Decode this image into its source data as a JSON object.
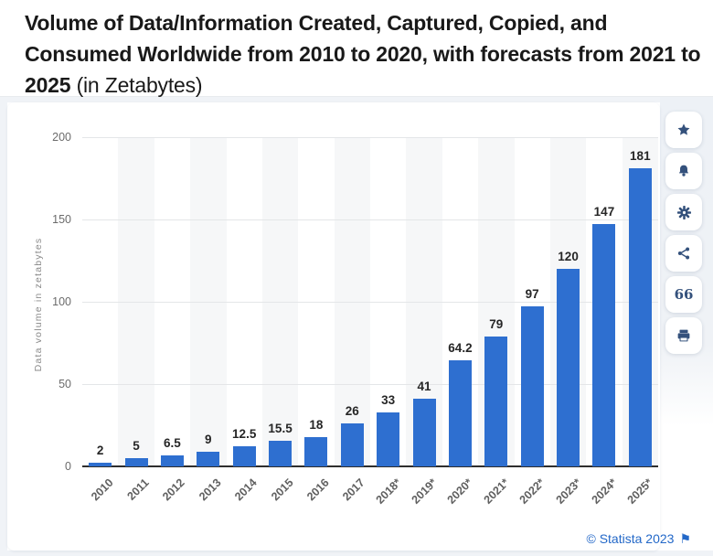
{
  "header": {
    "title_bold": "Volume of Data/Information Created, Captured, Copied, and Consumed Worldwide from 2010 to 2020, with forecasts from 2021 to 2025",
    "title_suffix": " (in Zetabytes)"
  },
  "chart_data": {
    "type": "bar",
    "title": "Volume of Data/Information Created, Captured, Copied, and Consumed Worldwide from 2010 to 2020, with forecasts from 2021 to 2025 (in Zetabytes)",
    "categories": [
      "2010",
      "2011",
      "2012",
      "2013",
      "2014",
      "2015",
      "2016",
      "2017",
      "2018*",
      "2019*",
      "2020*",
      "2021*",
      "2022*",
      "2023*",
      "2024*",
      "2025*"
    ],
    "values": [
      2,
      5,
      6.5,
      9,
      12.5,
      15.5,
      18,
      26,
      33,
      41,
      64.2,
      79,
      97,
      120,
      147,
      181
    ],
    "xlabel": "",
    "ylabel": "Data volume in zetabytes",
    "yticks": [
      0,
      50,
      100,
      150,
      200
    ],
    "ylim": [
      0,
      200
    ],
    "grid": true,
    "stripes": "alternating-columns",
    "legend": "none",
    "bar_color": "#2e6fd0"
  },
  "toolbar": {
    "items": [
      {
        "id": "favorite",
        "icon": "star-icon"
      },
      {
        "id": "alert",
        "icon": "bell-icon"
      },
      {
        "id": "settings",
        "icon": "gear-icon"
      },
      {
        "id": "share",
        "icon": "share-icon"
      },
      {
        "id": "cite",
        "icon": "quote-icon",
        "glyph": "66"
      },
      {
        "id": "print",
        "icon": "printer-icon"
      }
    ]
  },
  "footer": {
    "copyright": "© Statista 2023",
    "flag_icon": "⚑"
  },
  "colors": {
    "bar": "#2e6fd0",
    "link": "#2368c8",
    "icon": "#34517c"
  }
}
